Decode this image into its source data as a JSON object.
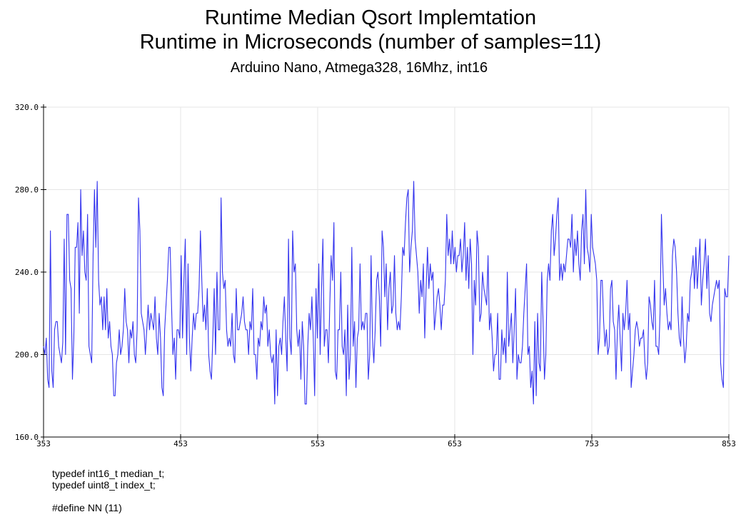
{
  "chart_data": {
    "type": "line",
    "title": "Runtime Median Qsort Implemtation",
    "title_line2": "Runtime in Microseconds (number of samples=11)",
    "subtitle": "Arduino Nano, Atmega328, 16Mhz, int16",
    "xlim": [
      353,
      853
    ],
    "ylim": [
      160,
      320
    ],
    "x_ticks": [
      353,
      453,
      553,
      653,
      753,
      853
    ],
    "y_ticks": [
      "160.0",
      "200.0",
      "240.0",
      "280.0",
      "320.0"
    ],
    "y_tick_values": [
      160,
      200,
      240,
      280,
      320
    ],
    "grid": true,
    "line_color": "#3333ee",
    "series": [
      {
        "values": [
          204,
          200,
          208,
          188,
          184,
          260,
          192,
          184,
          212,
          216,
          216,
          204,
          200,
          196,
          206,
          256,
          200,
          268,
          268,
          236,
          232,
          188,
          208,
          252,
          252,
          264,
          220,
          280,
          248,
          260,
          240,
          236,
          268,
          204,
          200,
          196,
          248,
          280,
          252,
          284,
          236,
          224,
          228,
          212,
          228,
          212,
          232,
          208,
          216,
          204,
          200,
          180,
          180,
          196,
          200,
          212,
          200,
          204,
          212,
          232,
          216,
          212,
          196,
          212,
          208,
          216,
          200,
          196,
          212,
          276,
          260,
          220,
          216,
          212,
          200,
          212,
          224,
          212,
          220,
          216,
          212,
          228,
          208,
          200,
          220,
          208,
          184,
          180,
          212,
          224,
          236,
          252,
          252,
          224,
          200,
          208,
          188,
          212,
          212,
          208,
          248,
          208,
          236,
          256,
          200,
          244,
          208,
          192,
          208,
          220,
          212,
          220,
          220,
          232,
          260,
          236,
          216,
          224,
          212,
          232,
          200,
          192,
          188,
          208,
          232,
          200,
          240,
          212,
          212,
          276,
          240,
          232,
          236,
          212,
          204,
          208,
          204,
          220,
          200,
          196,
          232,
          212,
          212,
          216,
          220,
          228,
          216,
          212,
          212,
          200,
          216,
          212,
          232,
          200,
          200,
          188,
          208,
          204,
          216,
          212,
          228,
          220,
          224,
          204,
          212,
          200,
          196,
          200,
          176,
          212,
          180,
          204,
          208,
          200,
          216,
          228,
          208,
          192,
          256,
          208,
          200,
          260,
          240,
          244,
          212,
          204,
          212,
          188,
          216,
          204,
          176,
          176,
          204,
          220,
          212,
          228,
          208,
          180,
          232,
          208,
          244,
          200,
          232,
          256,
          204,
          212,
          212,
          196,
          224,
          248,
          236,
          264,
          192,
          188,
          212,
          212,
          240,
          204,
          200,
          212,
          180,
          224,
          188,
          200,
          252,
          204,
          216,
          184,
          208,
          212,
          244,
          212,
          216,
          212,
          220,
          220,
          188,
          200,
          248,
          208,
          196,
          212,
          236,
          240,
          228,
          204,
          260,
          252,
          228,
          244,
          212,
          232,
          240,
          220,
          224,
          248,
          220,
          212,
          216,
          212,
          228,
          252,
          248,
          264,
          276,
          280,
          240,
          252,
          260,
          284,
          256,
          248,
          240,
          220,
          236,
          228,
          244,
          208,
          232,
          252,
          232,
          244,
          236,
          240,
          212,
          220,
          228,
          232,
          224,
          212,
          224,
          224,
          236,
          268,
          248,
          256,
          244,
          260,
          244,
          252,
          240,
          248,
          248,
          256,
          240,
          248,
          264,
          236,
          252,
          232,
          256,
          244,
          200,
          236,
          224,
          260,
          252,
          216,
          220,
          240,
          232,
          228,
          224,
          248,
          212,
          220,
          208,
          192,
          200,
          200,
          220,
          188,
          188,
          212,
          200,
          208,
          196,
          240,
          204,
          212,
          220,
          196,
          212,
          232,
          188,
          200,
          196,
          196,
          204,
          220,
          232,
          244,
          200,
          204,
          184,
          192,
          176,
          216,
          180,
          220,
          196,
          192,
          240,
          216,
          188,
          200,
          236,
          244,
          236,
          260,
          268,
          248,
          256,
          268,
          276,
          236,
          244,
          236,
          244,
          240,
          248,
          256,
          256,
          252,
          268,
          240,
          256,
          248,
          260,
          244,
          236,
          260,
          268,
          244,
          280,
          252,
          248,
          240,
          268,
          252,
          248,
          244,
          236,
          200,
          208,
          236,
          236,
          216,
          204,
          212,
          200,
          204,
          232,
          236,
          216,
          212,
          188,
          212,
          224,
          208,
          192,
          220,
          212,
          220,
          236,
          212,
          220,
          184,
          192,
          200,
          212,
          216,
          212,
          204,
          208,
          208,
          212,
          196,
          188,
          196,
          228,
          224,
          216,
          212,
          236,
          204,
          204,
          200,
          220,
          268,
          244,
          224,
          232,
          220,
          212,
          216,
          212,
          248,
          256,
          252,
          240,
          220,
          208,
          204,
          228,
          208,
          196,
          204,
          220,
          216,
          236,
          240,
          248,
          232,
          252,
          232,
          244,
          256,
          224,
          236,
          244,
          256,
          232,
          248,
          220,
          216,
          224,
          228,
          232,
          236,
          232,
          236,
          196,
          188,
          184,
          232,
          228,
          228,
          248
        ]
      }
    ]
  },
  "code_notes": [
    "typedef int16_t median_t;",
    "typedef uint8_t index_t;",
    "",
    "#define NN (11)"
  ]
}
